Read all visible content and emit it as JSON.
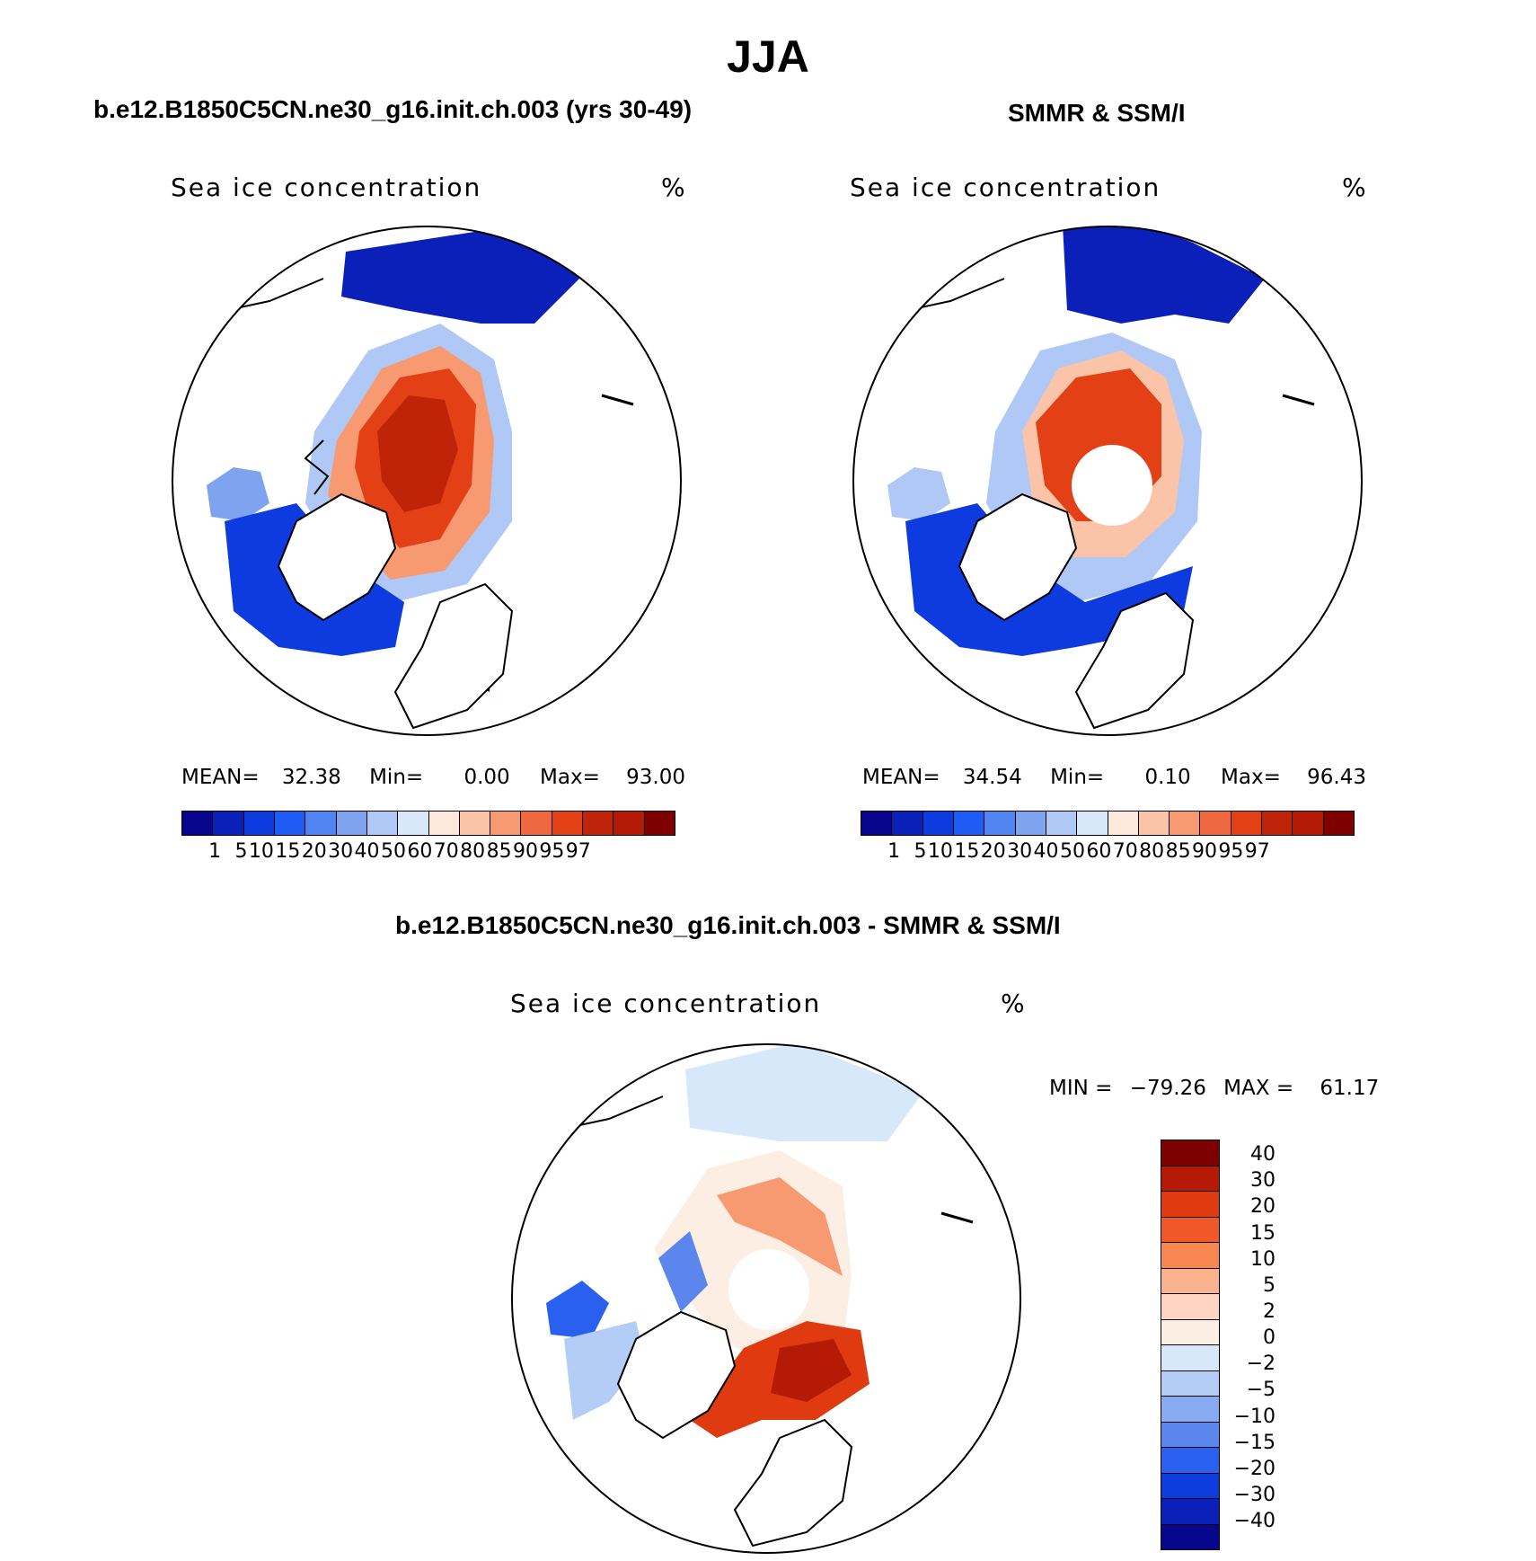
{
  "title": "JJA",
  "panels": {
    "model": {
      "title": "b.e12.B1850C5CN.ne30_g16.init.ch.003 (yrs 30-49)",
      "field": "Sea ice concentration",
      "unit": "%",
      "stats": {
        "mean_label": "MEAN=",
        "mean": "32.38",
        "min_label": "Min=",
        "min": "0.00",
        "max_label": "Max=",
        "max": "93.00"
      }
    },
    "obs": {
      "title": "SMMR & SSM/I",
      "field": "Sea ice concentration",
      "unit": "%",
      "stats": {
        "mean_label": "MEAN=",
        "mean": "34.54",
        "min_label": "Min=",
        "min": "0.10",
        "max_label": "Max=",
        "max": "96.43"
      }
    },
    "diff": {
      "title": "b.e12.B1850C5CN.ne30_g16.init.ch.003 - SMMR & SSM/I",
      "field": "Sea ice concentration",
      "unit": "%",
      "stats": {
        "min_label": "MIN =",
        "min": "−79.26",
        "max_label": "MAX =",
        "max": "61.17"
      }
    }
  },
  "colorbars": {
    "concentration": {
      "levels": [
        "1",
        "5",
        "10",
        "15",
        "20",
        "30",
        "40",
        "50",
        "60",
        "70",
        "80",
        "85",
        "90",
        "95",
        "97"
      ],
      "colors": [
        "#08068c",
        "#0a20b8",
        "#0d3be0",
        "#1f5bf5",
        "#4f84f2",
        "#7ea4f0",
        "#afc8f5",
        "#d8e8fb",
        "#fde8dc",
        "#fbc4a8",
        "#f79a72",
        "#f0683f",
        "#e44016",
        "#c02408",
        "#b51a06",
        "#7f0000"
      ]
    },
    "difference": {
      "levels": [
        "40",
        "30",
        "20",
        "15",
        "10",
        "5",
        "2",
        "0",
        "−2",
        "−5",
        "−10",
        "−15",
        "−20",
        "−30",
        "−40"
      ],
      "colors": [
        "#7f0000",
        "#b51a06",
        "#e03a10",
        "#f0582a",
        "#f78650",
        "#fab38e",
        "#fdd5c0",
        "#fdeee4",
        "#d8e8fb",
        "#b3cdf6",
        "#88aaf0",
        "#5b86ee",
        "#2a60f0",
        "#0c3ddd",
        "#0a20b8",
        "#08068c"
      ]
    }
  },
  "chart_data": [
    {
      "type": "heatmap",
      "title": "b.e12.B1850C5CN.ne30_g16.init.ch.003 (yrs 30-49)",
      "variable": "Sea ice concentration",
      "unit": "%",
      "season": "JJA",
      "projection": "north polar stereographic",
      "mean": 32.38,
      "min": 0.0,
      "max": 93.0,
      "contour_levels": [
        1,
        5,
        10,
        15,
        20,
        30,
        40,
        50,
        60,
        70,
        80,
        85,
        90,
        95,
        97
      ]
    },
    {
      "type": "heatmap",
      "title": "SMMR & SSM/I",
      "variable": "Sea ice concentration",
      "unit": "%",
      "season": "JJA",
      "projection": "north polar stereographic",
      "mean": 34.54,
      "min": 0.1,
      "max": 96.43,
      "contour_levels": [
        1,
        5,
        10,
        15,
        20,
        30,
        40,
        50,
        60,
        70,
        80,
        85,
        90,
        95,
        97
      ]
    },
    {
      "type": "heatmap",
      "title": "b.e12.B1850C5CN.ne30_g16.init.ch.003 - SMMR & SSM/I",
      "variable": "Sea ice concentration",
      "unit": "%",
      "season": "JJA",
      "projection": "north polar stereographic",
      "min": -79.26,
      "max": 61.17,
      "contour_levels": [
        -40,
        -30,
        -20,
        -15,
        -10,
        -5,
        -2,
        0,
        2,
        5,
        10,
        15,
        20,
        30,
        40
      ]
    }
  ]
}
